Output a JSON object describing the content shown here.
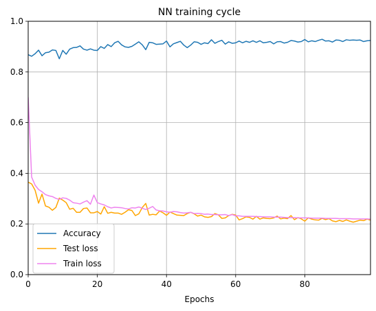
{
  "chart_data": {
    "type": "line",
    "title": "NN training cycle",
    "xlabel": "Epochs",
    "ylabel": "",
    "xlim": [
      0,
      99
    ],
    "ylim": [
      0,
      1.0
    ],
    "xticks": [
      0,
      20,
      40,
      60,
      80
    ],
    "yticks": [
      0.0,
      0.2,
      0.4,
      0.6,
      0.8,
      1.0
    ],
    "xtick_labels": [
      "0",
      "20",
      "40",
      "60",
      "80"
    ],
    "ytick_labels": [
      "0.0",
      "0.2",
      "0.4",
      "0.6",
      "0.8",
      "1.0"
    ],
    "grid": true,
    "legend_position": "lower-left",
    "x": [
      0,
      1,
      2,
      3,
      4,
      5,
      6,
      7,
      8,
      9,
      10,
      11,
      12,
      13,
      14,
      15,
      16,
      17,
      18,
      19,
      20,
      21,
      22,
      23,
      24,
      25,
      26,
      27,
      28,
      29,
      30,
      31,
      32,
      33,
      34,
      35,
      36,
      37,
      38,
      39,
      40,
      41,
      42,
      43,
      44,
      45,
      46,
      47,
      48,
      49,
      50,
      51,
      52,
      53,
      54,
      55,
      56,
      57,
      58,
      59,
      60,
      61,
      62,
      63,
      64,
      65,
      66,
      67,
      68,
      69,
      70,
      71,
      72,
      73,
      74,
      75,
      76,
      77,
      78,
      79,
      80,
      81,
      82,
      83,
      84,
      85,
      86,
      87,
      88,
      89,
      90,
      91,
      92,
      93,
      94,
      95,
      96,
      97,
      98,
      99
    ],
    "series": [
      {
        "name": "Accuracy",
        "color": "#1f77b4",
        "values": [
          0.868,
          0.862,
          0.872,
          0.886,
          0.864,
          0.876,
          0.878,
          0.887,
          0.885,
          0.852,
          0.885,
          0.87,
          0.89,
          0.896,
          0.897,
          0.903,
          0.89,
          0.886,
          0.891,
          0.886,
          0.885,
          0.9,
          0.893,
          0.908,
          0.9,
          0.915,
          0.921,
          0.907,
          0.899,
          0.897,
          0.901,
          0.91,
          0.919,
          0.907,
          0.888,
          0.917,
          0.915,
          0.909,
          0.91,
          0.911,
          0.922,
          0.899,
          0.911,
          0.916,
          0.921,
          0.906,
          0.896,
          0.906,
          0.919,
          0.917,
          0.909,
          0.915,
          0.912,
          0.927,
          0.913,
          0.92,
          0.925,
          0.91,
          0.919,
          0.913,
          0.915,
          0.922,
          0.915,
          0.921,
          0.917,
          0.923,
          0.917,
          0.923,
          0.915,
          0.917,
          0.92,
          0.911,
          0.919,
          0.92,
          0.914,
          0.917,
          0.924,
          0.922,
          0.918,
          0.92,
          0.928,
          0.919,
          0.923,
          0.92,
          0.925,
          0.929,
          0.922,
          0.923,
          0.918,
          0.926,
          0.925,
          0.92,
          0.927,
          0.925,
          0.926,
          0.925,
          0.926,
          0.92,
          0.923,
          0.924
        ]
      },
      {
        "name": "Test loss",
        "color": "#ffa500",
        "values": [
          0.365,
          0.358,
          0.333,
          0.282,
          0.318,
          0.271,
          0.266,
          0.254,
          0.265,
          0.302,
          0.294,
          0.284,
          0.258,
          0.262,
          0.246,
          0.246,
          0.261,
          0.263,
          0.244,
          0.244,
          0.249,
          0.239,
          0.268,
          0.242,
          0.246,
          0.243,
          0.243,
          0.238,
          0.246,
          0.256,
          0.253,
          0.233,
          0.24,
          0.265,
          0.281,
          0.235,
          0.238,
          0.236,
          0.251,
          0.244,
          0.234,
          0.247,
          0.241,
          0.235,
          0.234,
          0.233,
          0.241,
          0.246,
          0.24,
          0.231,
          0.235,
          0.228,
          0.226,
          0.229,
          0.241,
          0.236,
          0.222,
          0.224,
          0.233,
          0.238,
          0.235,
          0.216,
          0.221,
          0.228,
          0.226,
          0.219,
          0.23,
          0.219,
          0.224,
          0.222,
          0.221,
          0.224,
          0.231,
          0.22,
          0.223,
          0.221,
          0.233,
          0.217,
          0.225,
          0.22,
          0.211,
          0.224,
          0.219,
          0.216,
          0.215,
          0.222,
          0.217,
          0.221,
          0.212,
          0.209,
          0.214,
          0.21,
          0.216,
          0.211,
          0.207,
          0.211,
          0.215,
          0.213,
          0.219,
          0.215
        ]
      },
      {
        "name": "Train loss",
        "color": "#ee82ee",
        "values": [
          0.7,
          0.385,
          0.353,
          0.336,
          0.327,
          0.316,
          0.311,
          0.308,
          0.301,
          0.297,
          0.303,
          0.301,
          0.294,
          0.284,
          0.282,
          0.279,
          0.286,
          0.292,
          0.278,
          0.314,
          0.284,
          0.279,
          0.275,
          0.268,
          0.263,
          0.266,
          0.265,
          0.264,
          0.261,
          0.259,
          0.264,
          0.263,
          0.267,
          0.262,
          0.257,
          0.262,
          0.269,
          0.255,
          0.252,
          0.251,
          0.248,
          0.246,
          0.249,
          0.248,
          0.245,
          0.243,
          0.244,
          0.246,
          0.241,
          0.242,
          0.241,
          0.238,
          0.239,
          0.237,
          0.237,
          0.236,
          0.236,
          0.237,
          0.233,
          0.237,
          0.232,
          0.232,
          0.23,
          0.23,
          0.23,
          0.23,
          0.229,
          0.229,
          0.228,
          0.228,
          0.228,
          0.227,
          0.227,
          0.227,
          0.226,
          0.225,
          0.225,
          0.225,
          0.224,
          0.224,
          0.224,
          0.224,
          0.223,
          0.223,
          0.223,
          0.223,
          0.222,
          0.222,
          0.222,
          0.222,
          0.221,
          0.221,
          0.221,
          0.221,
          0.22,
          0.22,
          0.22,
          0.22,
          0.22,
          0.219
        ]
      }
    ]
  }
}
